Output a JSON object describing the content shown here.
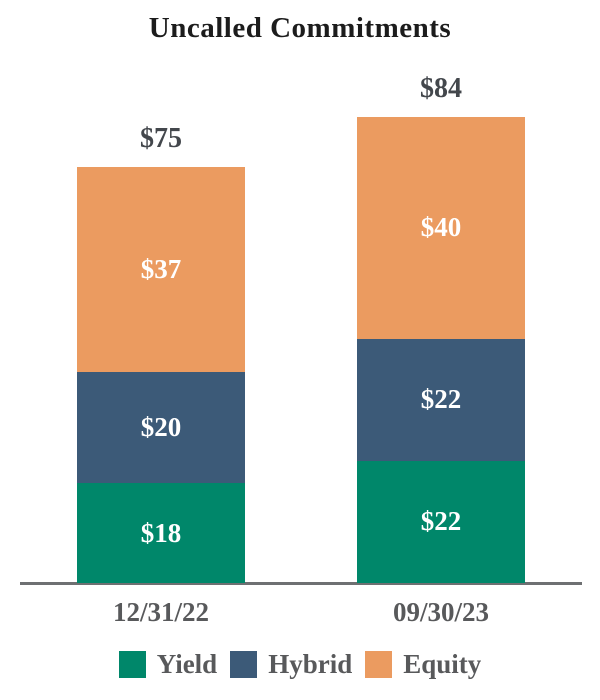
{
  "chart_data": {
    "type": "bar",
    "stacked": true,
    "title": "Uncalled Commitments",
    "categories": [
      "12/31/22",
      "09/30/23"
    ],
    "series": [
      {
        "name": "Yield",
        "color": "#00876A",
        "values": [
          18,
          22
        ]
      },
      {
        "name": "Hybrid",
        "color": "#3C5A78",
        "values": [
          20,
          22
        ]
      },
      {
        "name": "Equity",
        "color": "#EB9B60",
        "values": [
          37,
          40
        ]
      }
    ],
    "totals": [
      75,
      84
    ],
    "total_labels": [
      "$75",
      "$84"
    ],
    "segment_labels": [
      [
        "$18",
        "$20",
        "$37"
      ],
      [
        "$22",
        "$22",
        "$40"
      ]
    ],
    "value_prefix": "$",
    "legend_position": "bottom",
    "legend_entries": [
      "Yield",
      "Hybrid",
      "Equity"
    ],
    "gridlines": false,
    "y_axis_visible": false,
    "x_axis_line": true
  },
  "styles": {
    "title_color": "#1C1C1C",
    "total_label_color": "#43474C",
    "segment_label_color": "#FFFFFF",
    "category_label_color": "#58595B",
    "legend_label_color": "#58595B",
    "axis_line_color": "#6E7072",
    "page_bg": "#FFFFFF"
  }
}
